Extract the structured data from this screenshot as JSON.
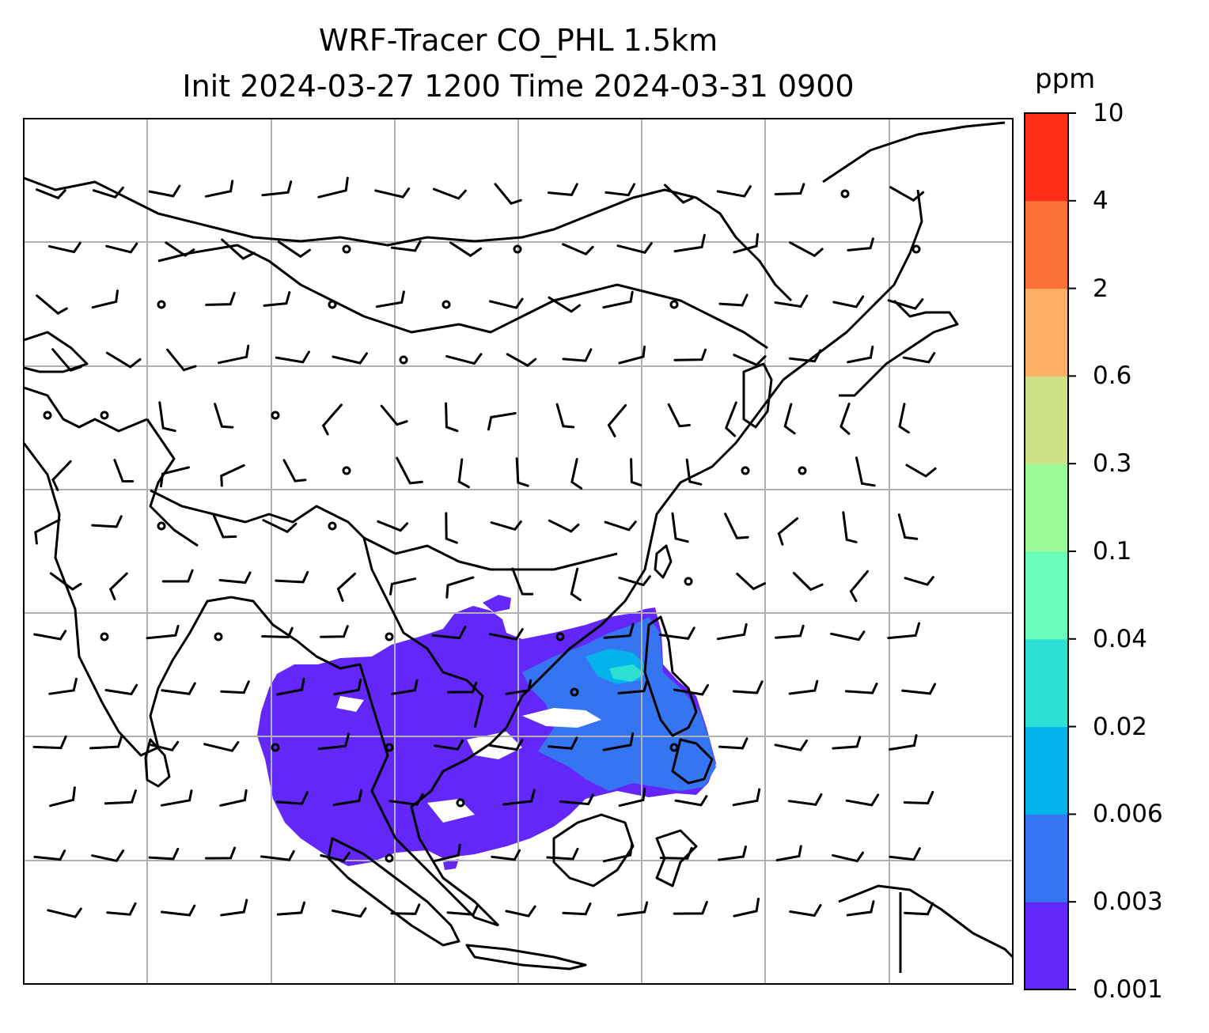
{
  "title": {
    "line1": "WRF-Tracer CO_PHL 1.5km",
    "line2": "Init 2024-03-27 1200 Time 2024-03-31 0900"
  },
  "colorbar": {
    "unit": "ppm",
    "ticks": [
      "0.001",
      "0.003",
      "0.006",
      "0.02",
      "0.04",
      "0.1",
      "0.3",
      "0.6",
      "2",
      "4",
      "10"
    ],
    "colors": [
      "#6328f9",
      "#3675f2",
      "#05b3ea",
      "#2edfd3",
      "#69fbbc",
      "#9bf998",
      "#cfe186",
      "#fdb066",
      "#fd7337",
      "#fd2e17"
    ]
  },
  "map": {
    "coastline_color": "#000000",
    "gridline_color": "#b0b0b0",
    "plume_colors": [
      "#6328f9",
      "#3675f2",
      "#05b3ea",
      "#2edfd3"
    ]
  }
}
